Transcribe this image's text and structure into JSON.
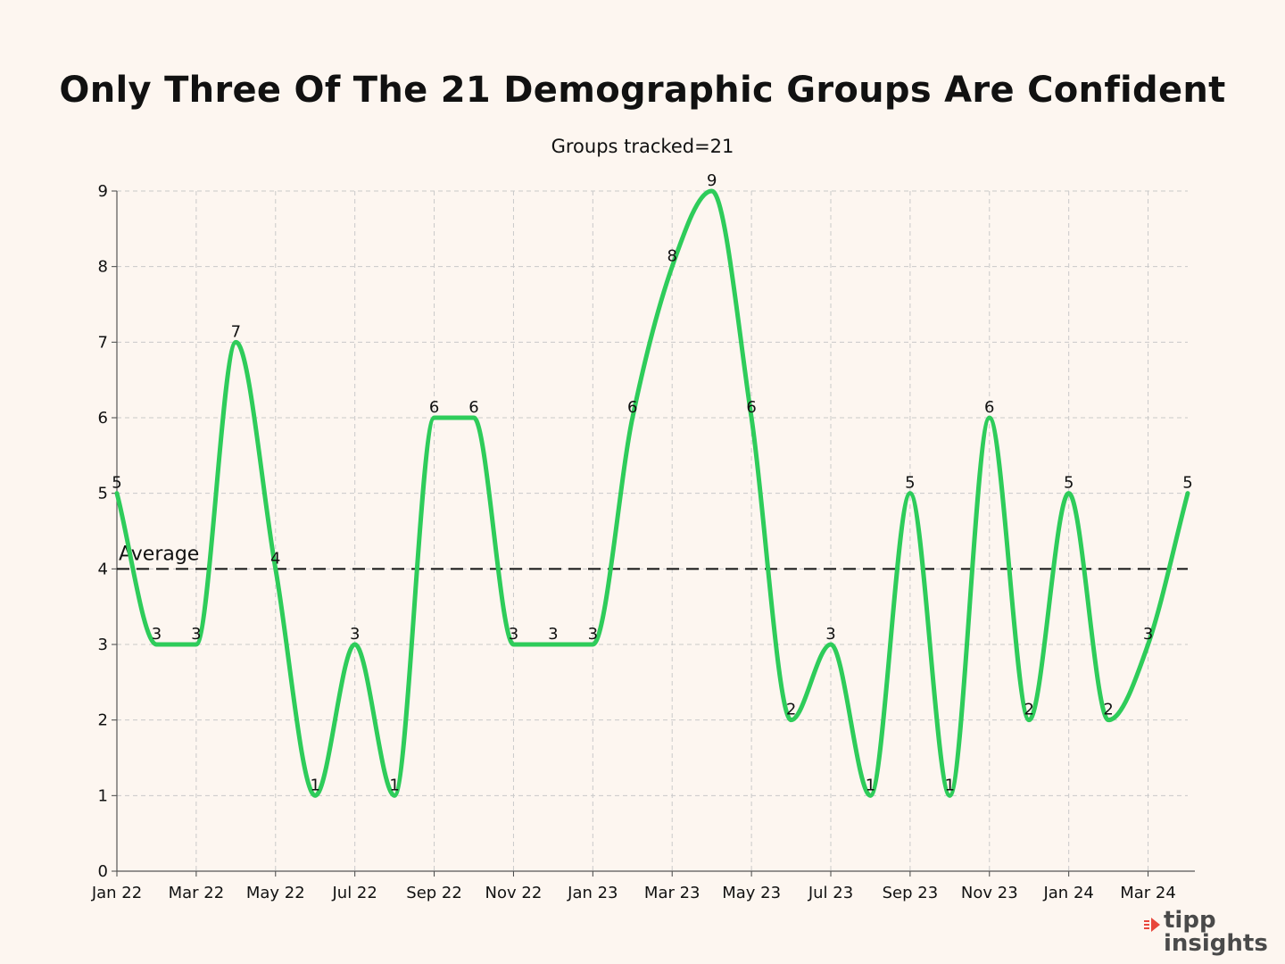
{
  "chart_data": {
    "type": "line",
    "title": "Only Three Of The 21 Demographic Groups Are Confident",
    "subtitle": "Groups tracked=21",
    "x": [
      "Jan 22",
      "Feb 22",
      "Mar 22",
      "Apr 22",
      "May 22",
      "Jun 22",
      "Jul 22",
      "Aug 22",
      "Sep 22",
      "Oct 22",
      "Nov 22",
      "Dec 22",
      "Jan 23",
      "Feb 23",
      "Mar 23",
      "Apr 23",
      "May 23",
      "Jun 23",
      "Jul 23",
      "Aug 23",
      "Sep 23",
      "Oct 23",
      "Nov 23",
      "Dec 23",
      "Jan 24",
      "Feb 24",
      "Mar 24",
      "Apr 24"
    ],
    "x_tick_labels": [
      "Jan 22",
      "Mar 22",
      "May 22",
      "Jul 22",
      "Sep 22",
      "Nov 22",
      "Jan 23",
      "Mar 23",
      "May 23",
      "Jul 23",
      "Sep 23",
      "Nov 23",
      "Jan 24",
      "Mar 24"
    ],
    "series": [
      {
        "values": [
          5,
          3,
          3,
          7,
          4,
          1,
          3,
          1,
          6,
          6,
          3,
          3,
          3,
          6,
          8,
          9,
          6,
          2,
          3,
          1,
          5,
          1,
          6,
          2,
          5,
          2,
          3,
          5
        ],
        "data_labels": [
          "5",
          "3",
          "3",
          "7",
          "4",
          "1",
          "3",
          "1",
          "6",
          "6",
          "3",
          "3",
          "3",
          "6",
          "8",
          "9",
          "6",
          "2",
          "3",
          "1",
          "5",
          "1",
          "6",
          "2",
          "5",
          "2",
          "3",
          "5"
        ],
        "color": "#2ecc5a"
      }
    ],
    "reference_line": {
      "label": "Average",
      "value": 4,
      "style": "dashed",
      "color": "#111111"
    },
    "ylim": [
      0,
      9
    ],
    "y_ticks": [
      "0",
      "1",
      "2",
      "3",
      "4",
      "5",
      "6",
      "7",
      "8",
      "9"
    ],
    "grid": true,
    "xlabel": "",
    "ylabel": ""
  },
  "logo": {
    "line1": "tipp",
    "line2": "insights",
    "accent": "#e8473c"
  },
  "colors": {
    "background": "#fdf6f0",
    "line": "#2ecc5a",
    "grid": "#c9c9c9"
  }
}
